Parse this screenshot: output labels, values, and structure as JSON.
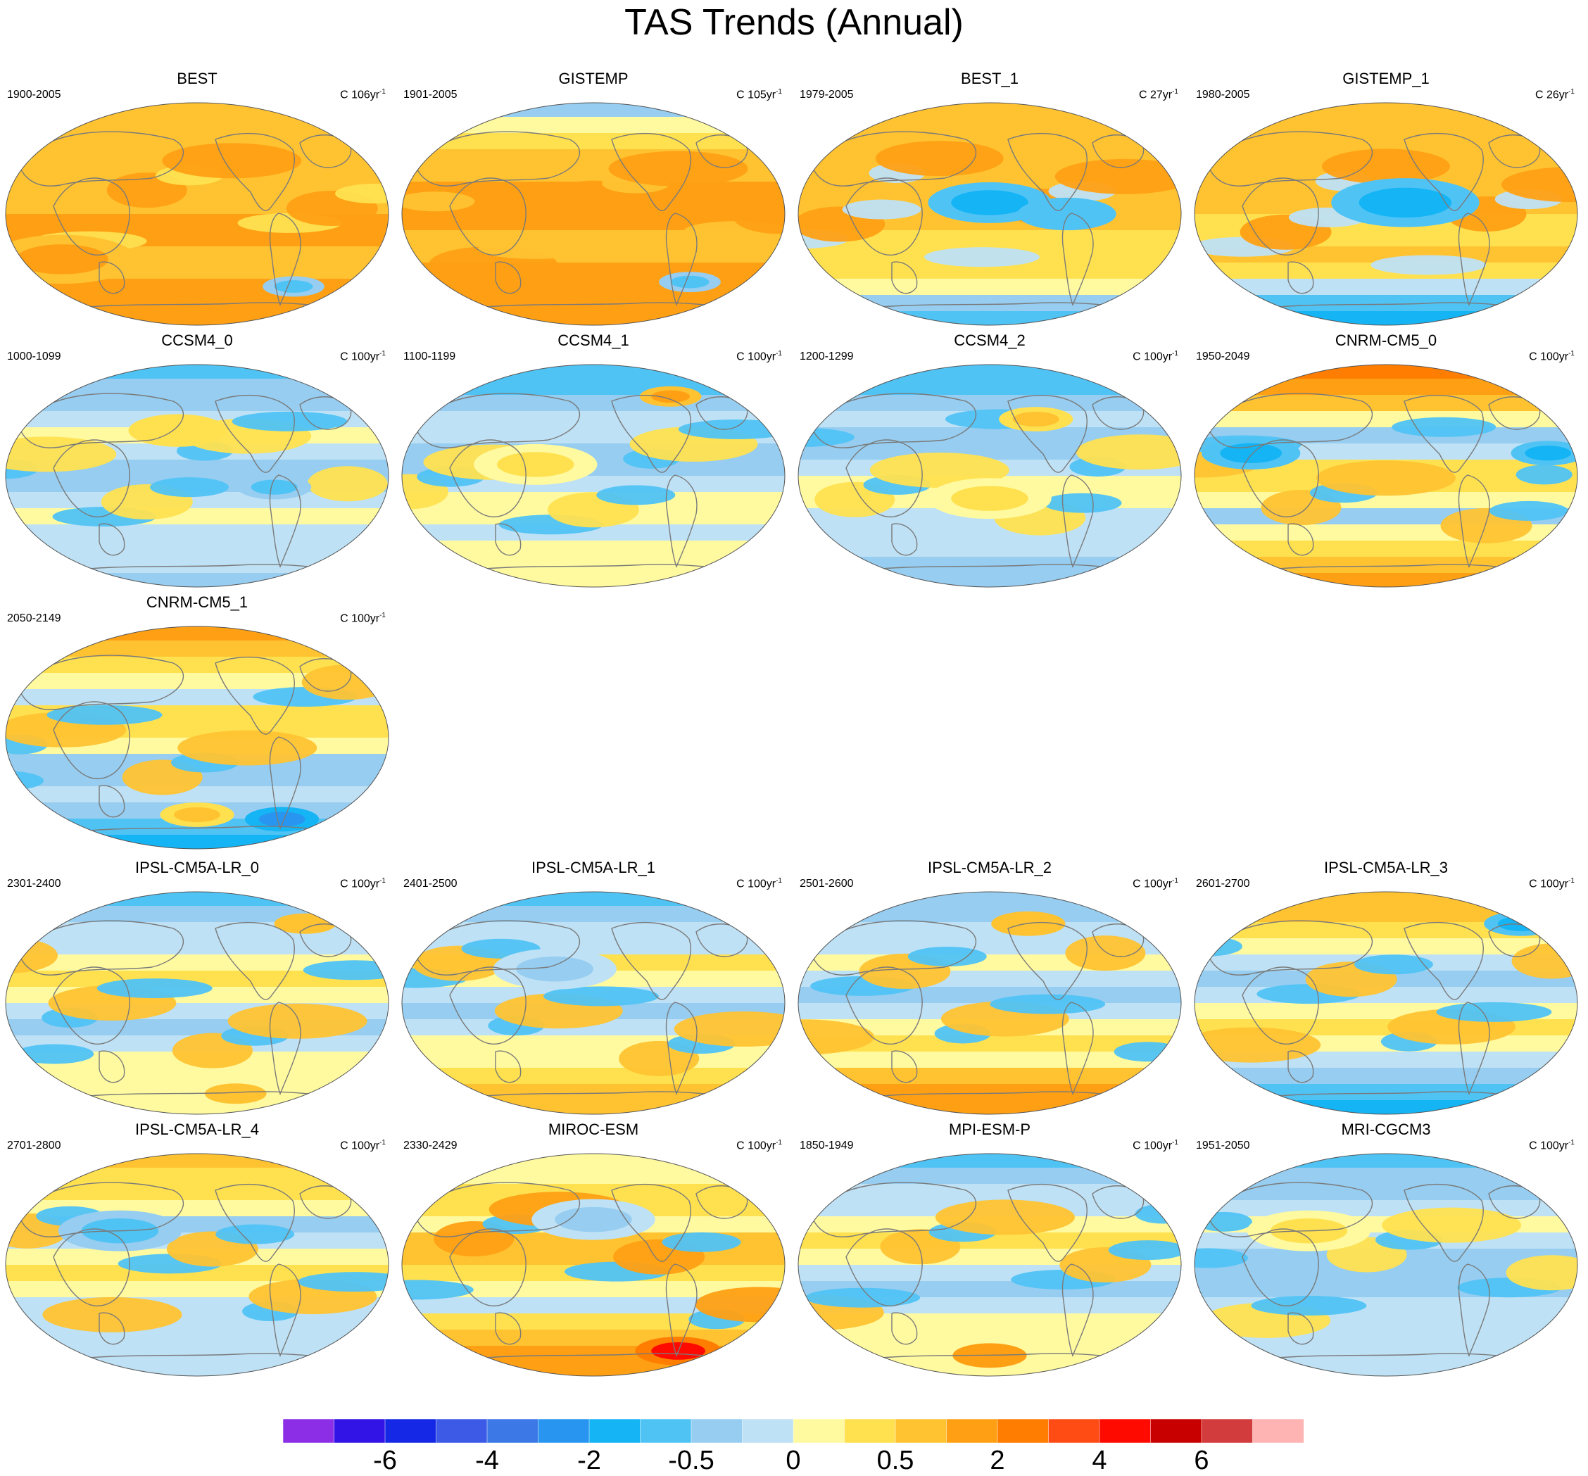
{
  "chart_data": {
    "type": "heatmap",
    "title": "TAS Trends (Annual)",
    "projection": "Robinson",
    "panels": [
      {
        "name": "BEST",
        "period": "1900-2005",
        "units_base": "C 106yr",
        "units_exp": "-1",
        "base": 0.9,
        "north": 0.6,
        "south": 1.5,
        "bg": 0.5,
        "blobs": [
          [
            0.15,
            0.7,
            0.12,
            1.4
          ],
          [
            0.75,
            0.82,
            0.05,
            -0.6
          ]
        ]
      },
      {
        "name": "GISTEMP",
        "period": "1901-2005",
        "units_base": "C 105yr",
        "units_exp": "-1",
        "base": 1.0,
        "north": -0.4,
        "south": 1.8,
        "bg": 0.4,
        "blobs": [
          [
            0.75,
            0.8,
            0.05,
            -0.6
          ]
        ]
      },
      {
        "name": "BEST_1",
        "period": "1979-2005",
        "units_base": "C 27yr",
        "units_exp": "-1",
        "base": 0.6,
        "north": 1.0,
        "south": -0.8,
        "bg": 0.7,
        "blobs": [
          [
            0.5,
            0.45,
            0.1,
            -1.0
          ],
          [
            0.7,
            0.5,
            0.08,
            -0.9
          ]
        ]
      },
      {
        "name": "GISTEMP_1",
        "period": "1980-2005",
        "units_base": "C 26yr",
        "units_exp": "-1",
        "base": 0.6,
        "north": 1.0,
        "south": -1.0,
        "bg": 0.7,
        "blobs": [
          [
            0.55,
            0.45,
            0.12,
            -1.2
          ]
        ]
      },
      {
        "name": "CCSM4_0",
        "period": "1000-1099",
        "units_base": "C 100yr",
        "units_exp": "-1",
        "base": -0.1,
        "north": -0.6,
        "south": -0.3,
        "bg": 0.6,
        "blobs": [
          [
            0.45,
            0.3,
            0.08,
            0.5
          ],
          [
            0.7,
            0.55,
            0.06,
            -0.6
          ]
        ]
      },
      {
        "name": "CCSM4_1",
        "period": "1100-1199",
        "units_base": "C 100yr",
        "units_exp": "-1",
        "base": -0.1,
        "north": -0.7,
        "south": 0.2,
        "bg": 0.6,
        "blobs": [
          [
            0.7,
            0.15,
            0.05,
            1.2
          ],
          [
            0.35,
            0.45,
            0.1,
            0.3
          ]
        ]
      },
      {
        "name": "CCSM4_2",
        "period": "1200-1299",
        "units_base": "C 100yr",
        "units_exp": "-1",
        "base": -0.1,
        "north": -0.8,
        "south": -0.4,
        "bg": 0.6,
        "blobs": [
          [
            0.62,
            0.25,
            0.06,
            0.7
          ],
          [
            0.5,
            0.6,
            0.1,
            0.3
          ]
        ]
      },
      {
        "name": "CNRM-CM5_0",
        "period": "1950-2049",
        "units_base": "C 100yr",
        "units_exp": "-1",
        "base": 0.0,
        "north": 2.4,
        "south": 1.2,
        "bg": 0.7,
        "blobs": [
          [
            0.15,
            0.4,
            0.08,
            -1.2
          ],
          [
            0.92,
            0.4,
            0.06,
            -1.2
          ]
        ]
      },
      {
        "name": "CNRM-CM5_1",
        "period": "2050-2149",
        "units_base": "C 100yr",
        "units_exp": "-1",
        "base": 0.0,
        "north": 1.2,
        "south": -1.2,
        "bg": 0.7,
        "blobs": [
          [
            0.72,
            0.86,
            0.06,
            -2.8
          ],
          [
            0.5,
            0.84,
            0.06,
            0.8
          ]
        ]
      },
      {
        "name": "IPSL-CM5A-LR_0",
        "period": "2301-2400",
        "units_base": "C 100yr",
        "units_exp": "-1",
        "base": 0.0,
        "north": -0.6,
        "south": 0.1,
        "bg": 0.6,
        "blobs": [
          [
            0.78,
            0.15,
            0.05,
            1.0
          ],
          [
            0.6,
            0.9,
            0.05,
            1.0
          ]
        ]
      },
      {
        "name": "IPSL-CM5A-LR_1",
        "period": "2401-2500",
        "units_base": "C 100yr",
        "units_exp": "-1",
        "base": 0.0,
        "north": -0.5,
        "south": 1.0,
        "bg": 0.6,
        "blobs": [
          [
            0.4,
            0.35,
            0.1,
            -0.4
          ]
        ]
      },
      {
        "name": "IPSL-CM5A-LR_2",
        "period": "2501-2600",
        "units_base": "C 100yr",
        "units_exp": "-1",
        "base": 0.0,
        "north": -0.4,
        "south": 1.5,
        "bg": 0.6,
        "blobs": [
          [
            0.6,
            0.15,
            0.06,
            1.0
          ]
        ]
      },
      {
        "name": "IPSL-CM5A-LR_3",
        "period": "2601-2700",
        "units_base": "C 100yr",
        "units_exp": "-1",
        "base": 0.0,
        "north": 1.0,
        "south": -1.2,
        "bg": 0.6,
        "blobs": [
          [
            0.85,
            0.15,
            0.06,
            -1.0
          ]
        ]
      },
      {
        "name": "IPSL-CM5A-LR_4",
        "period": "2701-2800",
        "units_base": "C 100yr",
        "units_exp": "-1",
        "base": 0.0,
        "north": 0.7,
        "south": -0.2,
        "bg": 0.6,
        "blobs": [
          [
            0.3,
            0.35,
            0.1,
            -0.5
          ]
        ]
      },
      {
        "name": "MIROC-ESM",
        "period": "2330-2429",
        "units_base": "C 100yr",
        "units_exp": "-1",
        "base": 0.3,
        "north": 0.2,
        "south": 1.4,
        "bg": 0.8,
        "blobs": [
          [
            0.72,
            0.88,
            0.07,
            4.5
          ],
          [
            0.5,
            0.3,
            0.1,
            -0.4
          ]
        ]
      },
      {
        "name": "MPI-ESM-P",
        "period": "1850-1949",
        "units_base": "C 100yr",
        "units_exp": "-1",
        "base": 0.0,
        "north": -0.5,
        "south": 0.2,
        "bg": 0.7,
        "blobs": [
          [
            0.5,
            0.9,
            0.06,
            1.8
          ]
        ]
      },
      {
        "name": "MRI-CGCM3",
        "period": "1951-2050",
        "units_base": "C 100yr",
        "units_exp": "-1",
        "base": -0.2,
        "north": -0.6,
        "south": -0.1,
        "bg": 0.5,
        "blobs": [
          [
            0.3,
            0.35,
            0.1,
            0.3
          ]
        ]
      }
    ],
    "levels": [
      -7,
      -6,
      -5,
      -4,
      -3,
      -2,
      -1,
      -0.5,
      -0.25,
      0,
      0.25,
      0.5,
      1,
      2,
      3,
      4,
      5,
      6,
      7
    ],
    "colorbar_colors": [
      "#8c2ee6",
      "#3214e6",
      "#1428e6",
      "#3c5ae6",
      "#3c78e6",
      "#2896f0",
      "#14b4f5",
      "#50c3f5",
      "#96cdf0",
      "#bee1f5",
      "#fffaa0",
      "#ffe150",
      "#ffc332",
      "#ffa014",
      "#ff7d00",
      "#ff4b14",
      "#ff0a00",
      "#c80000",
      "#d23c3c",
      "#ffb4b4"
    ],
    "colorbar_labels": [
      {
        "text": "-6",
        "index": 2
      },
      {
        "text": "-4",
        "index": 4
      },
      {
        "text": "-2",
        "index": 6
      },
      {
        "text": "-0.5",
        "index": 8
      },
      {
        "text": "0",
        "index": 10
      },
      {
        "text": "0.5",
        "index": 12
      },
      {
        "text": "2",
        "index": 14
      },
      {
        "text": "4",
        "index": 16
      },
      {
        "text": "6",
        "index": 18
      }
    ]
  }
}
